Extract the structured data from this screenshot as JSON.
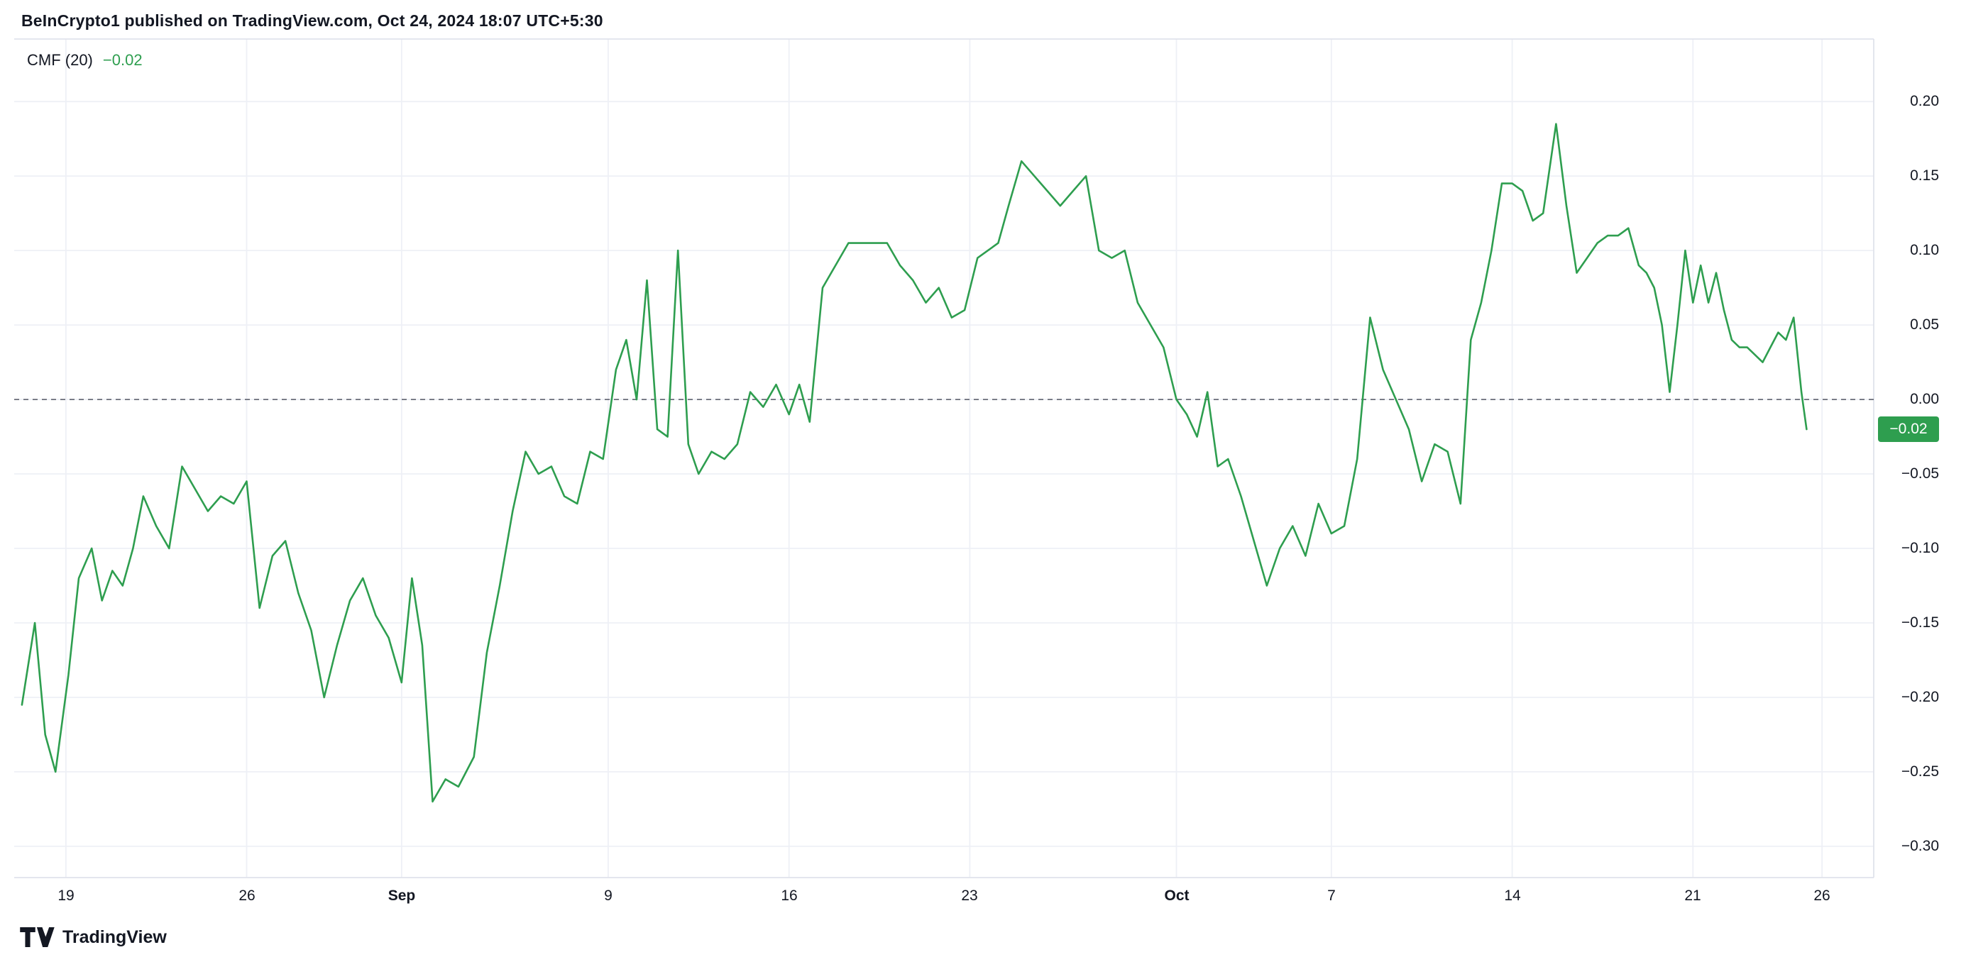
{
  "header": {
    "title": "BeInCrypto1 published on TradingView.com, Oct 24, 2024 18:07 UTC+5:30"
  },
  "indicator": {
    "label": "CMF (20)",
    "value": "−0.02"
  },
  "badge": {
    "value": "−0.02"
  },
  "footer": {
    "brand": "TradingView"
  },
  "colors": {
    "line": "#2e9e4f",
    "grid": "#eef0f6",
    "border": "#e0e3eb",
    "zero_line": "#6a6d78",
    "axis_text": "#131722",
    "badge_text": "#ffffff",
    "background": "#ffffff"
  },
  "chart_data": {
    "type": "line",
    "title": "CMF (20)",
    "legend": {
      "label": "CMF (20)",
      "value_label": "−0.02"
    },
    "line_color": "#2e9e4f",
    "zero_line": 0,
    "current_value": -0.02,
    "grid": true,
    "xlim": [
      0,
      72
    ],
    "ylim": [
      -0.321,
      0.242
    ],
    "x_ticks": [
      {
        "day": 2,
        "label": "19",
        "bold": false
      },
      {
        "day": 9,
        "label": "26",
        "bold": false
      },
      {
        "day": 15,
        "label": "Sep",
        "bold": true
      },
      {
        "day": 23,
        "label": "9",
        "bold": false
      },
      {
        "day": 30,
        "label": "16",
        "bold": false
      },
      {
        "day": 37,
        "label": "23",
        "bold": false
      },
      {
        "day": 45,
        "label": "Oct",
        "bold": true
      },
      {
        "day": 51,
        "label": "7",
        "bold": false
      },
      {
        "day": 58,
        "label": "14",
        "bold": false
      },
      {
        "day": 65,
        "label": "21",
        "bold": false
      },
      {
        "day": 70,
        "label": "26",
        "bold": false
      }
    ],
    "y_ticks": [
      {
        "value": 0.2,
        "label": "0.20"
      },
      {
        "value": 0.15,
        "label": "0.15"
      },
      {
        "value": 0.1,
        "label": "0.10"
      },
      {
        "value": 0.05,
        "label": "0.05"
      },
      {
        "value": 0.0,
        "label": "0.00"
      },
      {
        "value": -0.05,
        "label": "−0.05"
      },
      {
        "value": -0.1,
        "label": "−0.10"
      },
      {
        "value": -0.15,
        "label": "−0.15"
      },
      {
        "value": -0.2,
        "label": "−0.20"
      },
      {
        "value": -0.25,
        "label": "−0.25"
      },
      {
        "value": -0.3,
        "label": "−0.30"
      }
    ],
    "points": [
      [
        0.3,
        -0.205
      ],
      [
        0.8,
        -0.15
      ],
      [
        1.2,
        -0.225
      ],
      [
        1.6,
        -0.25
      ],
      [
        2.1,
        -0.185
      ],
      [
        2.5,
        -0.12
      ],
      [
        3.0,
        -0.1
      ],
      [
        3.4,
        -0.135
      ],
      [
        3.8,
        -0.115
      ],
      [
        4.2,
        -0.125
      ],
      [
        4.6,
        -0.1
      ],
      [
        5.0,
        -0.065
      ],
      [
        5.5,
        -0.085
      ],
      [
        6.0,
        -0.1
      ],
      [
        6.5,
        -0.045
      ],
      [
        7.0,
        -0.06
      ],
      [
        7.5,
        -0.075
      ],
      [
        8.0,
        -0.065
      ],
      [
        8.5,
        -0.07
      ],
      [
        9.0,
        -0.055
      ],
      [
        9.5,
        -0.14
      ],
      [
        10.0,
        -0.105
      ],
      [
        10.5,
        -0.095
      ],
      [
        11.0,
        -0.13
      ],
      [
        11.5,
        -0.155
      ],
      [
        12.0,
        -0.2
      ],
      [
        12.5,
        -0.165
      ],
      [
        13.0,
        -0.135
      ],
      [
        13.5,
        -0.12
      ],
      [
        14.0,
        -0.145
      ],
      [
        14.5,
        -0.16
      ],
      [
        15.0,
        -0.19
      ],
      [
        15.4,
        -0.12
      ],
      [
        15.8,
        -0.165
      ],
      [
        16.2,
        -0.27
      ],
      [
        16.7,
        -0.255
      ],
      [
        17.2,
        -0.26
      ],
      [
        17.8,
        -0.24
      ],
      [
        18.3,
        -0.17
      ],
      [
        18.8,
        -0.125
      ],
      [
        19.3,
        -0.075
      ],
      [
        19.8,
        -0.035
      ],
      [
        20.3,
        -0.05
      ],
      [
        20.8,
        -0.045
      ],
      [
        21.3,
        -0.065
      ],
      [
        21.8,
        -0.07
      ],
      [
        22.3,
        -0.035
      ],
      [
        22.8,
        -0.04
      ],
      [
        23.3,
        0.02
      ],
      [
        23.7,
        0.04
      ],
      [
        24.1,
        0.0
      ],
      [
        24.5,
        0.08
      ],
      [
        24.9,
        -0.02
      ],
      [
        25.3,
        -0.025
      ],
      [
        25.7,
        0.1
      ],
      [
        26.1,
        -0.03
      ],
      [
        26.5,
        -0.05
      ],
      [
        27.0,
        -0.035
      ],
      [
        27.5,
        -0.04
      ],
      [
        28.0,
        -0.03
      ],
      [
        28.5,
        0.005
      ],
      [
        29.0,
        -0.005
      ],
      [
        29.5,
        0.01
      ],
      [
        30.0,
        -0.01
      ],
      [
        30.4,
        0.01
      ],
      [
        30.8,
        -0.015
      ],
      [
        31.3,
        0.075
      ],
      [
        31.8,
        0.09
      ],
      [
        32.3,
        0.105
      ],
      [
        32.8,
        0.105
      ],
      [
        33.3,
        0.105
      ],
      [
        33.8,
        0.105
      ],
      [
        34.3,
        0.09
      ],
      [
        34.8,
        0.08
      ],
      [
        35.3,
        0.065
      ],
      [
        35.8,
        0.075
      ],
      [
        36.3,
        0.055
      ],
      [
        36.8,
        0.06
      ],
      [
        37.3,
        0.095
      ],
      [
        37.7,
        0.1
      ],
      [
        38.1,
        0.105
      ],
      [
        38.5,
        0.13
      ],
      [
        39.0,
        0.16
      ],
      [
        39.5,
        0.15
      ],
      [
        40.0,
        0.14
      ],
      [
        40.5,
        0.13
      ],
      [
        41.0,
        0.14
      ],
      [
        41.5,
        0.15
      ],
      [
        42.0,
        0.1
      ],
      [
        42.5,
        0.095
      ],
      [
        43.0,
        0.1
      ],
      [
        43.5,
        0.065
      ],
      [
        44.0,
        0.05
      ],
      [
        44.5,
        0.035
      ],
      [
        45.0,
        0.0
      ],
      [
        45.4,
        -0.01
      ],
      [
        45.8,
        -0.025
      ],
      [
        46.2,
        0.005
      ],
      [
        46.6,
        -0.045
      ],
      [
        47.0,
        -0.04
      ],
      [
        47.5,
        -0.065
      ],
      [
        48.0,
        -0.095
      ],
      [
        48.5,
        -0.125
      ],
      [
        49.0,
        -0.1
      ],
      [
        49.5,
        -0.085
      ],
      [
        50.0,
        -0.105
      ],
      [
        50.5,
        -0.07
      ],
      [
        51.0,
        -0.09
      ],
      [
        51.5,
        -0.085
      ],
      [
        52.0,
        -0.04
      ],
      [
        52.5,
        0.055
      ],
      [
        53.0,
        0.02
      ],
      [
        53.5,
        0.0
      ],
      [
        54.0,
        -0.02
      ],
      [
        54.5,
        -0.055
      ],
      [
        55.0,
        -0.03
      ],
      [
        55.5,
        -0.035
      ],
      [
        56.0,
        -0.07
      ],
      [
        56.4,
        0.04
      ],
      [
        56.8,
        0.065
      ],
      [
        57.2,
        0.1
      ],
      [
        57.6,
        0.145
      ],
      [
        58.0,
        0.145
      ],
      [
        58.4,
        0.14
      ],
      [
        58.8,
        0.12
      ],
      [
        59.2,
        0.125
      ],
      [
        59.7,
        0.185
      ],
      [
        60.1,
        0.13
      ],
      [
        60.5,
        0.085
      ],
      [
        60.9,
        0.095
      ],
      [
        61.3,
        0.105
      ],
      [
        61.7,
        0.11
      ],
      [
        62.1,
        0.11
      ],
      [
        62.5,
        0.115
      ],
      [
        62.9,
        0.09
      ],
      [
        63.2,
        0.085
      ],
      [
        63.5,
        0.075
      ],
      [
        63.8,
        0.05
      ],
      [
        64.1,
        0.005
      ],
      [
        64.4,
        0.05
      ],
      [
        64.7,
        0.1
      ],
      [
        65.0,
        0.065
      ],
      [
        65.3,
        0.09
      ],
      [
        65.6,
        0.065
      ],
      [
        65.9,
        0.085
      ],
      [
        66.2,
        0.06
      ],
      [
        66.5,
        0.04
      ],
      [
        66.8,
        0.035
      ],
      [
        67.1,
        0.035
      ],
      [
        67.4,
        0.03
      ],
      [
        67.7,
        0.025
      ],
      [
        68.0,
        0.035
      ],
      [
        68.3,
        0.045
      ],
      [
        68.6,
        0.04
      ],
      [
        68.9,
        0.055
      ],
      [
        69.2,
        0.005
      ],
      [
        69.4,
        -0.02
      ]
    ]
  }
}
